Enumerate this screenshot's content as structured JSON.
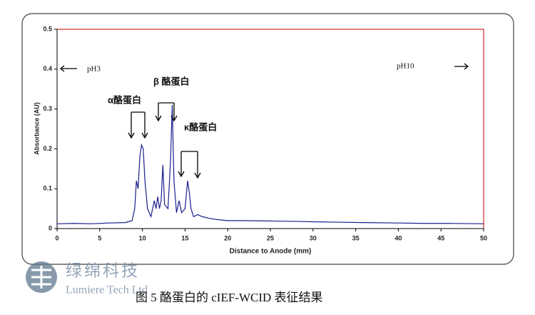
{
  "chart_data": {
    "type": "line",
    "xlabel": "Distance to Anode (mm)",
    "ylabel": "Absorbance (AU)",
    "x": [
      0,
      2,
      4,
      6,
      8,
      8.8,
      9.1,
      9.3,
      9.5,
      9.7,
      9.9,
      10.1,
      10.3,
      10.6,
      11,
      11.4,
      11.6,
      11.8,
      12,
      12.2,
      12.4,
      12.6,
      13,
      13.3,
      13.5,
      13.7,
      14,
      14.3,
      14.6,
      15,
      15.3,
      15.5,
      15.7,
      16,
      16.5,
      17,
      18,
      19,
      20,
      22,
      25,
      28,
      30,
      33,
      36,
      40,
      43,
      46,
      50
    ],
    "values": [
      0.012,
      0.013,
      0.012,
      0.014,
      0.015,
      0.02,
      0.05,
      0.12,
      0.1,
      0.18,
      0.21,
      0.2,
      0.12,
      0.05,
      0.03,
      0.07,
      0.05,
      0.08,
      0.05,
      0.07,
      0.16,
      0.06,
      0.05,
      0.17,
      0.31,
      0.12,
      0.04,
      0.07,
      0.04,
      0.05,
      0.12,
      0.09,
      0.05,
      0.03,
      0.035,
      0.03,
      0.025,
      0.022,
      0.02,
      0.02,
      0.019,
      0.018,
      0.017,
      0.016,
      0.015,
      0.014,
      0.013,
      0.013,
      0.012
    ],
    "color": "#1a1f8c",
    "xlim": [
      0,
      50
    ],
    "xticks": [
      0,
      5,
      10,
      15,
      20,
      25,
      30,
      35,
      40,
      45,
      50
    ],
    "ylim": [
      0,
      0.5
    ],
    "yticks": [
      0,
      0.1,
      0.2,
      0.3,
      0.4,
      0.5
    ],
    "annotations": [
      "pH3",
      "pH10",
      "α酪蛋白",
      "β 酪蛋白",
      "κ酪蛋白"
    ]
  },
  "caption": "图 5  酪蛋白的 cIEF-WCID 表征结果",
  "logo": {
    "name": "绿绵科技",
    "subtitle": "Lumiere Tech Ltd"
  }
}
